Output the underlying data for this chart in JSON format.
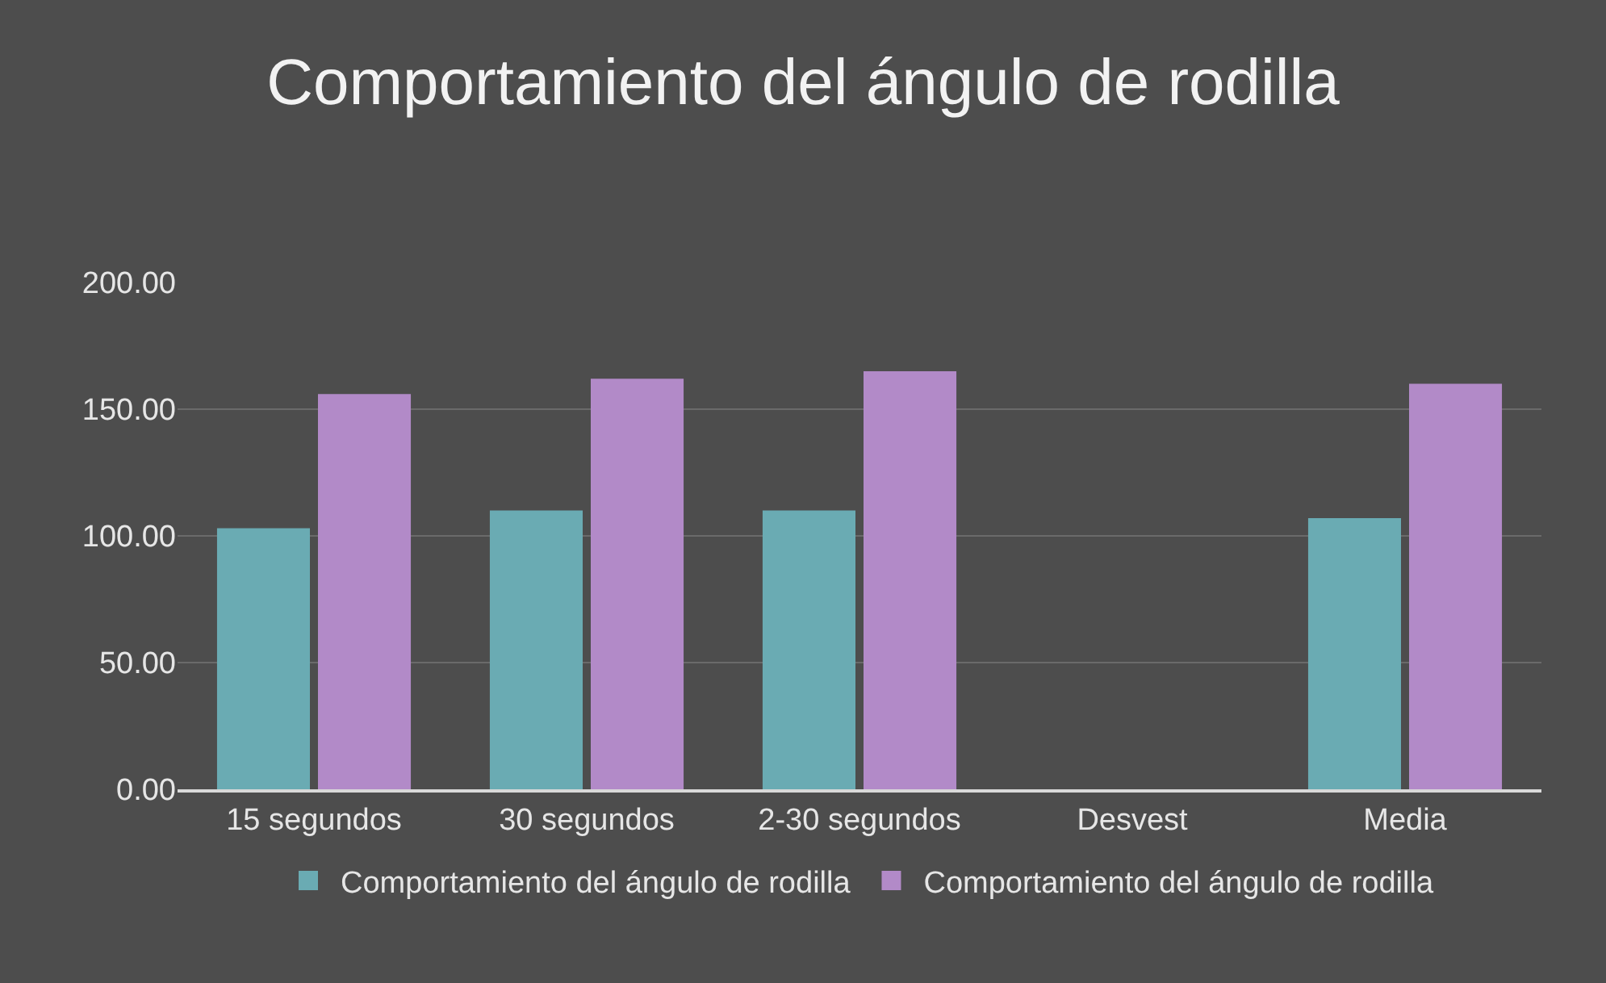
{
  "chart_data": {
    "type": "bar",
    "title": "Comportamiento del ángulo de rodilla",
    "categories": [
      "15 segundos",
      "30 segundos",
      "2-30 segundos",
      "Desvest",
      "Media"
    ],
    "series": [
      {
        "name": "Comportamiento del ángulo de rodilla",
        "color": "#6aabb3",
        "values": [
          103,
          110,
          110,
          null,
          107
        ]
      },
      {
        "name": "Comportamiento del ángulo de rodilla",
        "color": "#b28ac8",
        "values": [
          156,
          162,
          165,
          null,
          160
        ]
      }
    ],
    "ylim": [
      0,
      200
    ],
    "yticks": [
      {
        "value": 0,
        "label": "0.00"
      },
      {
        "value": 50,
        "label": "50.00"
      },
      {
        "value": 100,
        "label": "100.00"
      },
      {
        "value": 150,
        "label": "150.00"
      },
      {
        "value": 200,
        "label": "200.00"
      }
    ],
    "grid": "y",
    "legend": "bottom"
  }
}
